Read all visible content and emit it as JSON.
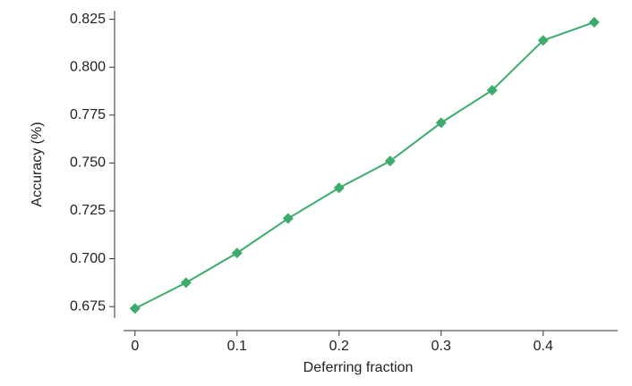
{
  "chart_data": {
    "type": "line",
    "xlabel": "Deferring fraction",
    "ylabel": "Accuracy (%)",
    "x": [
      0,
      0.05,
      0.1,
      0.15,
      0.2,
      0.25,
      0.3,
      0.35,
      0.4,
      0.45
    ],
    "series": [
      {
        "color": "#3dab6c",
        "values": [
          0.674,
          0.6875,
          0.703,
          0.721,
          0.737,
          0.751,
          0.771,
          0.788,
          0.814,
          0.8235
        ]
      }
    ],
    "xlim": [
      -0.02,
      0.473
    ],
    "xticks": [
      0,
      0.1,
      0.2,
      0.3,
      0.4
    ],
    "ylim": [
      0.669,
      0.8295
    ],
    "yticks": [
      0.675,
      {
        "value": 0.7,
        "label": "0.700"
      },
      0.725,
      {
        "value": 0.75,
        "label": "0.750"
      },
      0.775,
      {
        "value": 0.8,
        "label": "0.800"
      },
      0.825
    ]
  }
}
